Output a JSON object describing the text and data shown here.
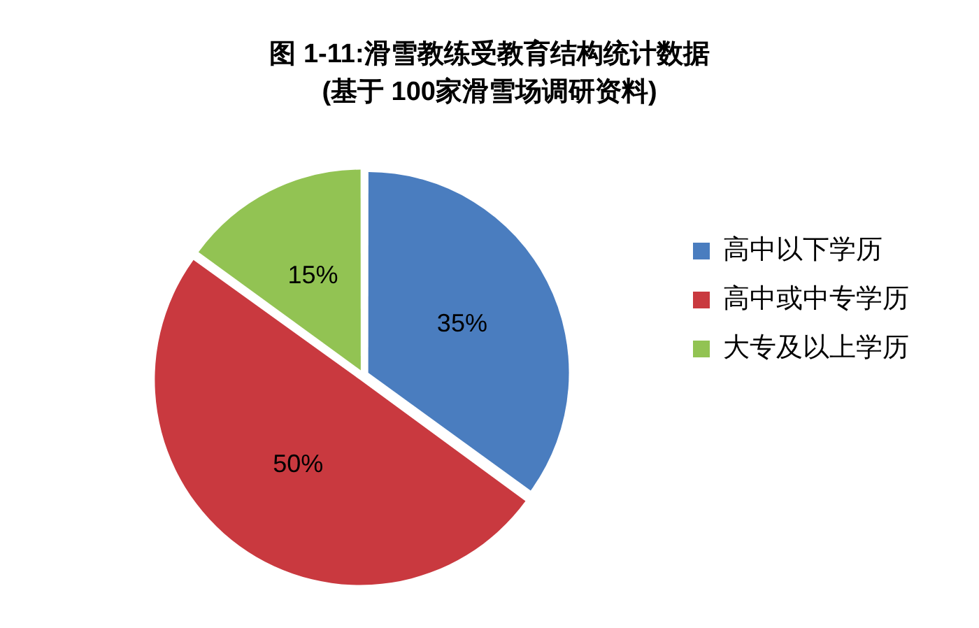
{
  "chart_data": {
    "type": "pie",
    "title": "图 1-11:滑雪教练受教育结构统计数据",
    "subtitle": "(基于 100家滑雪场调研资料)",
    "categories": [
      "高中以下学历",
      "高中或中专学历",
      "大专及以上学历"
    ],
    "values": [
      35,
      50,
      15
    ],
    "colors": [
      "#4a7dbf",
      "#c9393f",
      "#92c353"
    ],
    "value_labels": [
      "35%",
      "50%",
      "15%"
    ],
    "legend": "right"
  }
}
